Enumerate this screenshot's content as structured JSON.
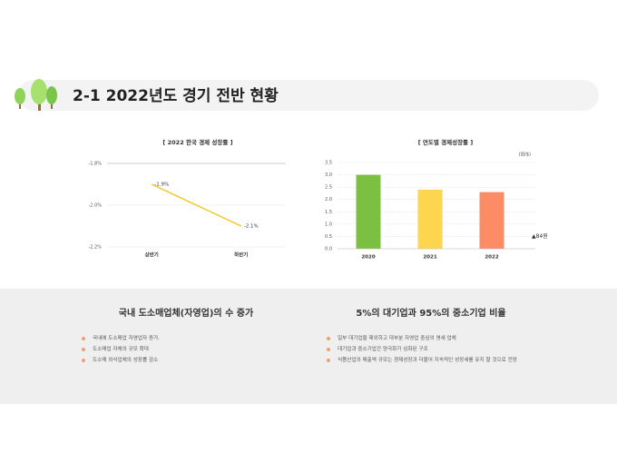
{
  "header": {
    "title": "2-1 2022년도 경기 전반 현황"
  },
  "chart_data": [
    {
      "type": "line",
      "title": "[ 2022 한국 경제 성장률 ]",
      "categories": [
        "상반기",
        "하반기"
      ],
      "values": [
        -1.9,
        -2.1
      ],
      "value_labels": [
        "-1.9%",
        "-2.1%"
      ],
      "color": "#f5c518",
      "ylim": [
        -2.2,
        -1.8
      ],
      "yticks": [
        {
          "value": -1.8,
          "label": "-1.8%"
        },
        {
          "value": -2.0,
          "label": "-2.0%"
        },
        {
          "value": -2.2,
          "label": "-2.2%"
        }
      ],
      "grid": true
    },
    {
      "type": "bar",
      "title": "[ 연도별 경제성장률 ]",
      "unit": "(원/$)",
      "annotation": "▲84원",
      "categories": [
        "2020",
        "2021",
        "2022"
      ],
      "values": [
        3.0,
        2.4,
        2.3
      ],
      "colors": [
        "#7cc043",
        "#fdd54f",
        "#fb8c65"
      ],
      "ylim": [
        0,
        3.5
      ],
      "yticks": [
        {
          "value": 0,
          "label": "0.0"
        },
        {
          "value": 0.5,
          "label": "0.5"
        },
        {
          "value": 1,
          "label": "1.0"
        },
        {
          "value": 1.5,
          "label": "1.5"
        },
        {
          "value": 2,
          "label": "2.0"
        },
        {
          "value": 2.5,
          "label": "2.5"
        },
        {
          "value": 3,
          "label": "3.0"
        },
        {
          "value": 3.5,
          "label": "3.5"
        }
      ],
      "grid": true
    }
  ],
  "sections": [
    {
      "heading": "국내 도소매업체(자영업)의 수 증가",
      "bullets": [
        "국내에 도소매업 자영업자 증가.",
        "도소매업 자체의 규모 확대",
        "도소매 외식업체의 성장률 감소"
      ]
    },
    {
      "heading": "5%의 대기업과 95%의 중소기업 비율",
      "bullets": [
        "일부 대기업을 제외하고 대부분 자영업 중심의 영세 업체",
        "대기업과 중소기업간 양극화가 심화된 구조",
        "식품산업의 매출액 규모는 경제성장과 더불어 지속적인 성장세를 유지 할 것으로 전망"
      ]
    }
  ]
}
